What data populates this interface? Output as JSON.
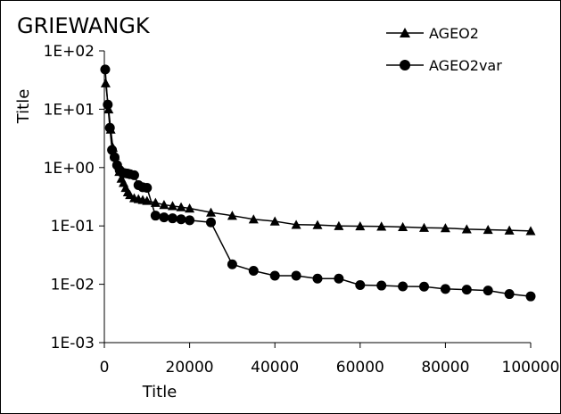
{
  "chart_data": {
    "type": "line",
    "title": "GRIEWANGK",
    "xlabel": "Title",
    "ylabel": "Title",
    "x_scale": "linear",
    "y_scale": "log",
    "xlim": [
      0,
      100000
    ],
    "ylim": [
      0.001,
      100
    ],
    "x_ticks": [
      0,
      20000,
      40000,
      60000,
      80000,
      100000
    ],
    "x_tick_labels": [
      "0",
      "20000",
      "40000",
      "60000",
      "80000",
      "100000"
    ],
    "y_ticks": [
      0.001,
      0.01,
      0.1,
      1,
      10,
      100
    ],
    "y_tick_labels": [
      "1E-03",
      "1E-02",
      "1E-01",
      "1E+00",
      "1E+01",
      "1E+02"
    ],
    "grid": false,
    "legend_position": "top-right",
    "series": [
      {
        "name": "AGEO2",
        "marker": "triangle",
        "color": "#000000",
        "points": [
          [
            300,
            28
          ],
          [
            1000,
            10
          ],
          [
            1500,
            4.5
          ],
          [
            2000,
            2.2
          ],
          [
            2500,
            1.6
          ],
          [
            3000,
            1.2
          ],
          [
            3500,
            0.85
          ],
          [
            4000,
            0.65
          ],
          [
            4500,
            0.55
          ],
          [
            5000,
            0.45
          ],
          [
            5500,
            0.38
          ],
          [
            6000,
            0.34
          ],
          [
            7000,
            0.3
          ],
          [
            8000,
            0.29
          ],
          [
            9000,
            0.28
          ],
          [
            10000,
            0.27
          ],
          [
            12000,
            0.25
          ],
          [
            14000,
            0.23
          ],
          [
            16000,
            0.22
          ],
          [
            18000,
            0.21
          ],
          [
            20000,
            0.2
          ],
          [
            25000,
            0.17
          ],
          [
            30000,
            0.15
          ],
          [
            35000,
            0.13
          ],
          [
            40000,
            0.12
          ],
          [
            45000,
            0.105
          ],
          [
            50000,
            0.104
          ],
          [
            55000,
            0.1
          ],
          [
            60000,
            0.099
          ],
          [
            65000,
            0.098
          ],
          [
            70000,
            0.096
          ],
          [
            75000,
            0.093
          ],
          [
            80000,
            0.092
          ],
          [
            85000,
            0.088
          ],
          [
            90000,
            0.086
          ],
          [
            95000,
            0.084
          ],
          [
            100000,
            0.082
          ]
        ]
      },
      {
        "name": "AGEO2var",
        "marker": "circle",
        "color": "#000000",
        "points": [
          [
            200,
            48
          ],
          [
            800,
            12
          ],
          [
            1300,
            4.8
          ],
          [
            1800,
            2.0
          ],
          [
            2400,
            1.5
          ],
          [
            3000,
            1.1
          ],
          [
            3600,
            0.9
          ],
          [
            4200,
            0.82
          ],
          [
            4800,
            0.8
          ],
          [
            5400,
            0.79
          ],
          [
            6000,
            0.77
          ],
          [
            7000,
            0.74
          ],
          [
            8000,
            0.5
          ],
          [
            9000,
            0.46
          ],
          [
            10000,
            0.45
          ],
          [
            12000,
            0.15
          ],
          [
            14000,
            0.14
          ],
          [
            16000,
            0.135
          ],
          [
            18000,
            0.13
          ],
          [
            20000,
            0.125
          ],
          [
            25000,
            0.115
          ],
          [
            30000,
            0.022
          ],
          [
            35000,
            0.017
          ],
          [
            40000,
            0.014
          ],
          [
            45000,
            0.014
          ],
          [
            50000,
            0.0125
          ],
          [
            55000,
            0.0125
          ],
          [
            60000,
            0.0097
          ],
          [
            65000,
            0.0095
          ],
          [
            70000,
            0.0092
          ],
          [
            75000,
            0.0091
          ],
          [
            80000,
            0.0083
          ],
          [
            85000,
            0.0081
          ],
          [
            90000,
            0.0078
          ],
          [
            95000,
            0.0068
          ],
          [
            100000,
            0.0062
          ]
        ]
      }
    ]
  }
}
